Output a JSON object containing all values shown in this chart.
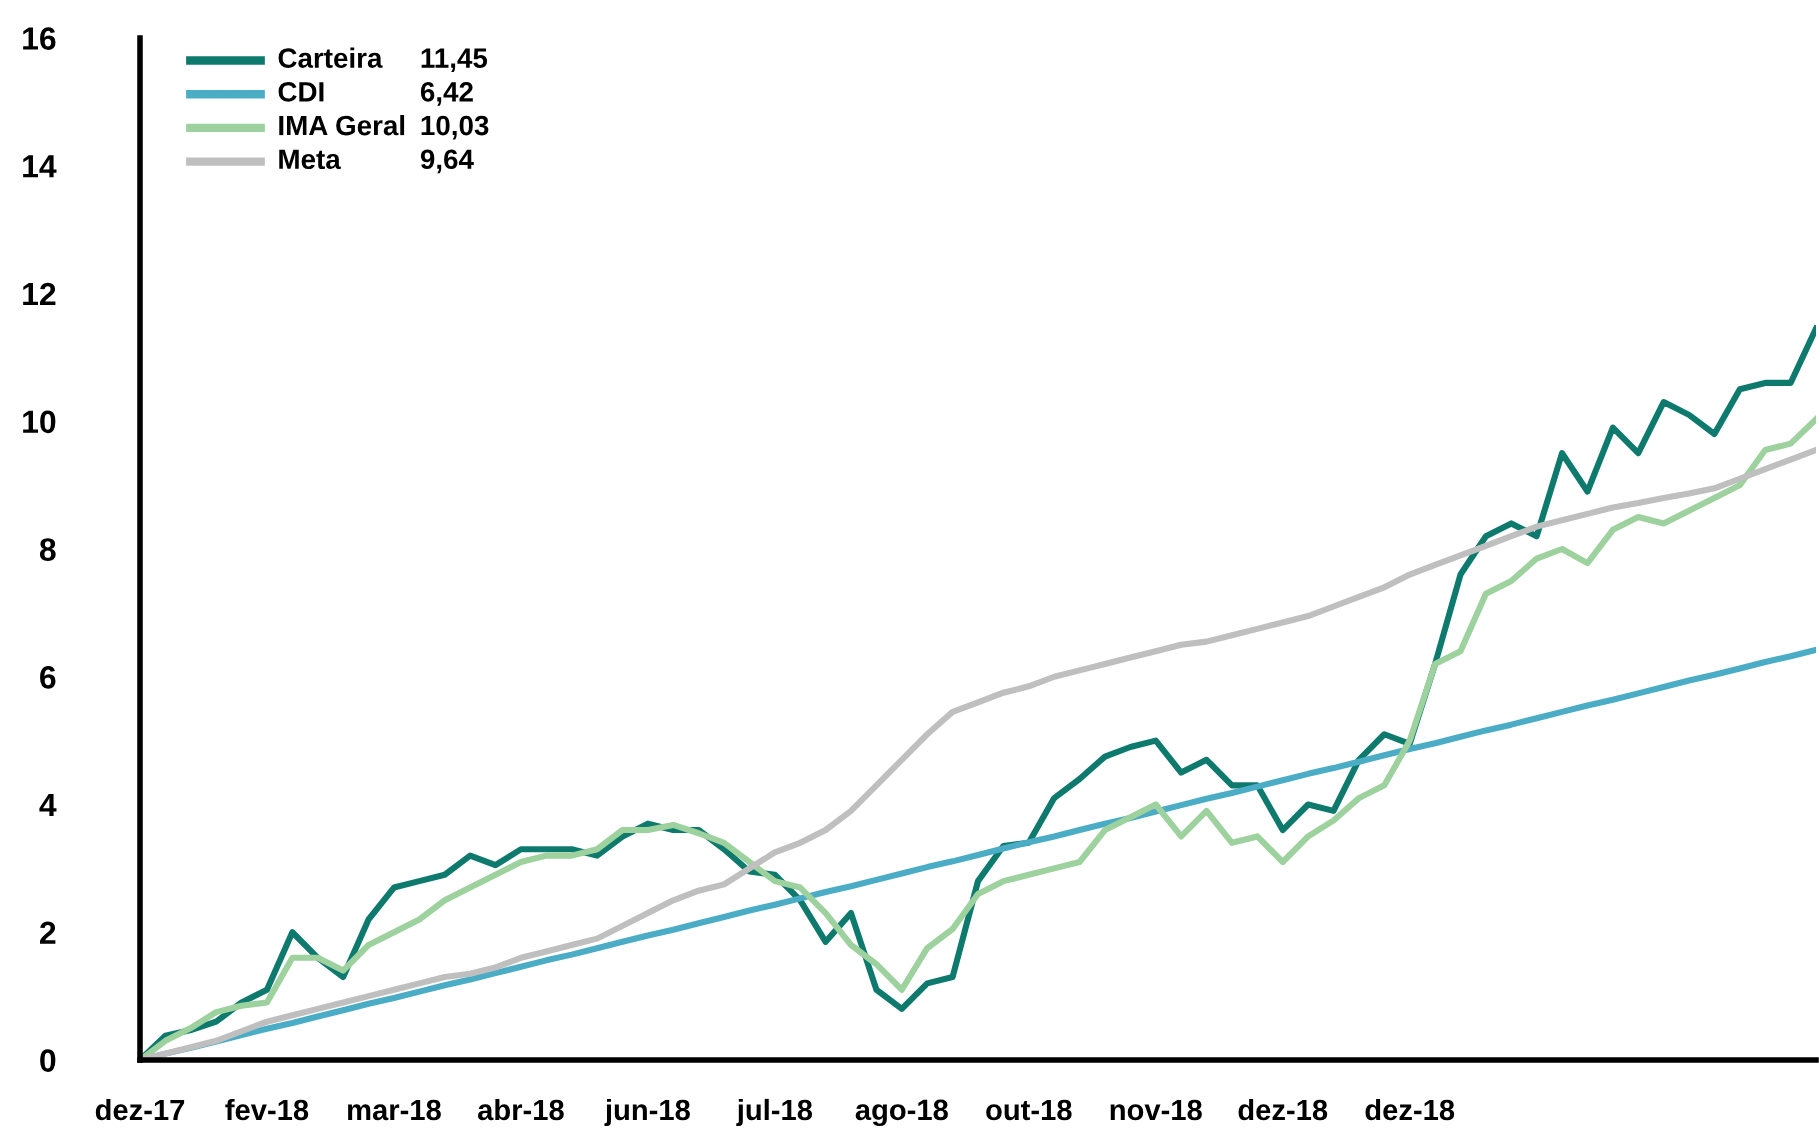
{
  "chart_data": {
    "type": "line",
    "categories": [
      "dez-17",
      null,
      null,
      null,
      null,
      "fev-18",
      null,
      null,
      null,
      null,
      "mar-18",
      null,
      null,
      null,
      null,
      "abr-18",
      null,
      null,
      null,
      null,
      "jun-18",
      null,
      null,
      null,
      null,
      "jul-18",
      null,
      null,
      null,
      null,
      "ago-18",
      null,
      null,
      null,
      null,
      "out-18",
      null,
      null,
      null,
      null,
      "nov-18",
      null,
      null,
      null,
      null,
      "dez-18",
      null,
      null,
      null,
      null,
      "dez-18",
      null,
      null,
      null,
      null,
      null,
      null,
      null,
      null,
      null,
      null,
      null,
      null,
      null,
      null,
      null,
      null
    ],
    "series": [
      {
        "name": "Carteira",
        "color": "#0e7a6e",
        "values": [
          0,
          0.38,
          0.47,
          0.6,
          0.9,
          1.1,
          2.0,
          1.6,
          1.3,
          2.2,
          2.7,
          2.8,
          2.9,
          3.2,
          3.05,
          3.3,
          3.3,
          3.3,
          3.2,
          3.5,
          3.7,
          3.6,
          3.6,
          3.3,
          2.95,
          2.9,
          2.5,
          1.85,
          2.3,
          1.1,
          0.8,
          1.2,
          1.3,
          2.8,
          3.35,
          3.4,
          4.1,
          4.4,
          4.75,
          4.9,
          5.0,
          4.5,
          4.7,
          4.3,
          4.3,
          3.6,
          4.0,
          3.9,
          4.7,
          5.1,
          4.95,
          6.2,
          7.6,
          8.2,
          8.4,
          8.2,
          9.5,
          8.9,
          9.9,
          9.5,
          10.3,
          10.1,
          9.8,
          10.5,
          10.6,
          10.6,
          11.45
        ]
      },
      {
        "name": "CDI",
        "color": "#4bacc6",
        "values": [
          0,
          0.1,
          0.19,
          0.29,
          0.39,
          0.49,
          0.58,
          0.68,
          0.78,
          0.88,
          0.97,
          1.07,
          1.17,
          1.26,
          1.36,
          1.46,
          1.56,
          1.65,
          1.75,
          1.85,
          1.95,
          2.04,
          2.14,
          2.24,
          2.34,
          2.43,
          2.53,
          2.63,
          2.72,
          2.82,
          2.92,
          3.02,
          3.11,
          3.21,
          3.31,
          3.41,
          3.5,
          3.6,
          3.7,
          3.79,
          3.89,
          3.99,
          4.09,
          4.18,
          4.28,
          4.38,
          4.48,
          4.57,
          4.67,
          4.77,
          4.87,
          4.96,
          5.06,
          5.16,
          5.25,
          5.35,
          5.45,
          5.55,
          5.64,
          5.74,
          5.84,
          5.94,
          6.03,
          6.13,
          6.23,
          6.32,
          6.42
        ]
      },
      {
        "name": "IMA Geral",
        "color": "#9dd19e",
        "values": [
          0,
          0.3,
          0.5,
          0.75,
          0.85,
          0.9,
          1.6,
          1.6,
          1.4,
          1.8,
          2.0,
          2.2,
          2.5,
          2.7,
          2.9,
          3.1,
          3.2,
          3.2,
          3.3,
          3.6,
          3.6,
          3.68,
          3.55,
          3.4,
          3.1,
          2.8,
          2.7,
          2.3,
          1.8,
          1.5,
          1.1,
          1.75,
          2.05,
          2.6,
          2.8,
          2.9,
          3.0,
          3.1,
          3.6,
          3.8,
          4.0,
          3.5,
          3.9,
          3.4,
          3.5,
          3.1,
          3.5,
          3.75,
          4.1,
          4.3,
          5.0,
          6.2,
          6.4,
          7.3,
          7.5,
          7.85,
          8.0,
          7.78,
          8.3,
          8.5,
          8.4,
          8.6,
          8.8,
          9.0,
          9.55,
          9.65,
          10.03
        ]
      },
      {
        "name": "Meta",
        "color": "#bfbfbf",
        "values": [
          0,
          0.1,
          0.2,
          0.3,
          0.45,
          0.6,
          0.7,
          0.8,
          0.9,
          1.0,
          1.1,
          1.2,
          1.3,
          1.35,
          1.45,
          1.6,
          1.7,
          1.8,
          1.9,
          2.1,
          2.3,
          2.5,
          2.65,
          2.75,
          3.0,
          3.25,
          3.4,
          3.6,
          3.9,
          4.3,
          4.7,
          5.1,
          5.45,
          5.6,
          5.75,
          5.85,
          6.0,
          6.1,
          6.2,
          6.3,
          6.4,
          6.5,
          6.55,
          6.65,
          6.75,
          6.85,
          6.95,
          7.1,
          7.25,
          7.4,
          7.6,
          7.75,
          7.9,
          8.05,
          8.2,
          8.35,
          8.45,
          8.55,
          8.65,
          8.72,
          8.8,
          8.87,
          8.95,
          9.1,
          9.25,
          9.4,
          9.55
        ]
      }
    ],
    "annotations": [
      "11,45",
      "6,42",
      "10,03",
      "9,64"
    ],
    "ylim": [
      0,
      16
    ],
    "yticks": [
      0,
      2,
      4,
      6,
      8,
      10,
      12,
      14,
      16
    ],
    "grid": false,
    "legend": "top left",
    "marker": "none",
    "line_style": "solid"
  }
}
